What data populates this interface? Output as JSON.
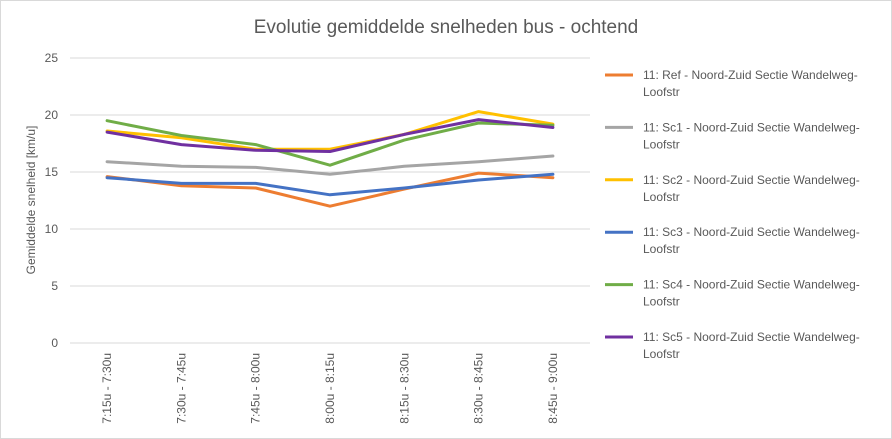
{
  "chart_data": {
    "type": "line",
    "title": "Evolutie gemiddelde snelheden bus  - ochtend",
    "ylabel": "Gemiddelde snelheid [km/u]",
    "xlabel": "",
    "ylim": [
      0,
      25
    ],
    "yticks": [
      0,
      5,
      10,
      15,
      20,
      25
    ],
    "grid": true,
    "legend_position": "right",
    "categories": [
      "7:15u - 7:30u",
      "7:30u - 7:45u",
      "7:45u - 8:00u",
      "8:00u - 8:15u",
      "8:15u - 8:30u",
      "8:30u - 8:45u",
      "8:45u - 9:00u"
    ],
    "series": [
      {
        "name": "11: Ref - Noord-Zuid Sectie Wandelweg-Loofstr",
        "legend_lines": [
          "11: Ref - Noord-Zuid Sectie Wandelweg-",
          "Loofstr"
        ],
        "color": "#ed7d31",
        "values": [
          14.6,
          13.8,
          13.6,
          12.0,
          13.5,
          14.9,
          14.5
        ]
      },
      {
        "name": "11: Sc1 - Noord-Zuid Sectie Wandelweg-Loofstr",
        "legend_lines": [
          "11: Sc1 - Noord-Zuid Sectie Wandelweg-",
          "Loofstr"
        ],
        "color": "#a5a5a5",
        "values": [
          15.9,
          15.5,
          15.4,
          14.8,
          15.5,
          15.9,
          16.4
        ]
      },
      {
        "name": "11: Sc2 - Noord-Zuid Sectie Wandelweg-Loofstr",
        "legend_lines": [
          "11: Sc2 - Noord-Zuid Sectie Wandelweg-",
          "Loofstr"
        ],
        "color": "#ffc000",
        "values": [
          18.6,
          18.0,
          17.0,
          17.0,
          18.3,
          20.3,
          19.2
        ]
      },
      {
        "name": "11: Sc3 - Noord-Zuid Sectie Wandelweg-Loofstr",
        "legend_lines": [
          "11: Sc3 - Noord-Zuid Sectie Wandelweg-",
          "Loofstr"
        ],
        "color": "#4472c4",
        "values": [
          14.5,
          14.0,
          14.0,
          13.0,
          13.6,
          14.3,
          14.8
        ]
      },
      {
        "name": "11: Sc4 - Noord-Zuid Sectie Wandelweg-Loofstr",
        "legend_lines": [
          "11: Sc4 - Noord-Zuid Sectie Wandelweg-",
          "Loofstr"
        ],
        "color": "#70ad47",
        "values": [
          19.5,
          18.2,
          17.4,
          15.6,
          17.8,
          19.3,
          19.1
        ]
      },
      {
        "name": "11: Sc5 - Noord-Zuid Sectie Wandelweg-Loofstr",
        "legend_lines": [
          "11: Sc5 - Noord-Zuid Sectie Wandelweg-",
          "Loofstr"
        ],
        "color": "#7030a0",
        "values": [
          18.5,
          17.4,
          16.9,
          16.8,
          18.3,
          19.6,
          18.9
        ]
      }
    ]
  }
}
